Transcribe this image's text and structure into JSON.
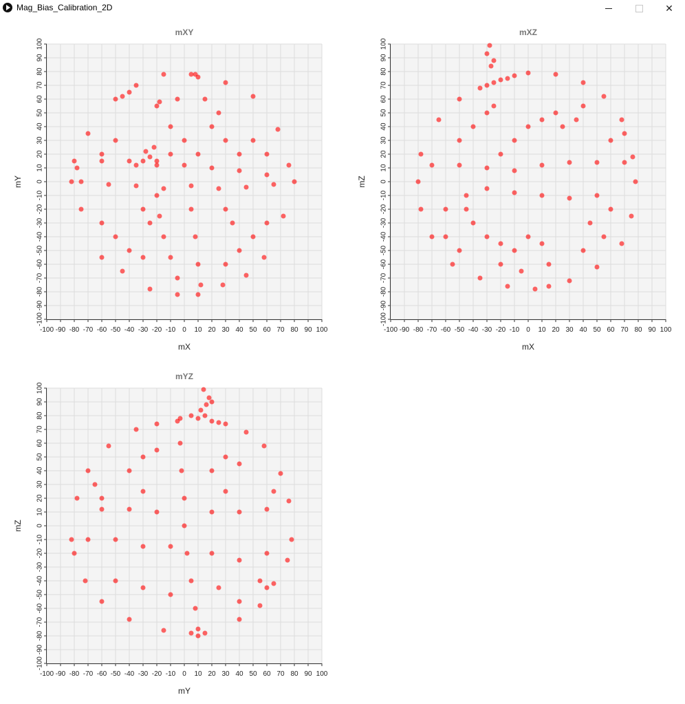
{
  "window": {
    "title": "Mag_Bias_Calibration_2D",
    "minimize_icon": "minimize-icon",
    "maximize_icon": "maximize-icon",
    "close_icon": "close-icon"
  },
  "colors": {
    "point": "#ff0000",
    "plot_bg": "#f4f4f4",
    "grid": "#dcdcdc",
    "title": "#777777"
  },
  "chart_data": [
    {
      "type": "scatter",
      "title": "mXY",
      "xlabel": "mX",
      "ylabel": "mY",
      "xlim": [
        -100,
        100
      ],
      "ylim": [
        -100,
        100
      ],
      "xticks": [
        "-100",
        "-90",
        "-80",
        "-70",
        "-60",
        "-50",
        "-40",
        "-30",
        "-20",
        "-10",
        "0",
        "10",
        "20",
        "30",
        "40",
        "50",
        "60",
        "70",
        "80",
        "90",
        "100"
      ],
      "yticks": [
        "100",
        "90",
        "80",
        "70",
        "60",
        "50",
        "40",
        "30",
        "20",
        "10",
        "0",
        "-10",
        "-20",
        "-30",
        "-40",
        "-50",
        "-60",
        "-70",
        "-80",
        "-90",
        "-100"
      ],
      "grid": true,
      "series": [
        {
          "points": [
            [
              -82,
              0
            ],
            [
              80,
              0
            ],
            [
              -78,
              10
            ],
            [
              76,
              12
            ],
            [
              -75,
              -20
            ],
            [
              72,
              -25
            ],
            [
              -70,
              35
            ],
            [
              68,
              38
            ],
            [
              -60,
              -55
            ],
            [
              58,
              -55
            ],
            [
              -50,
              60
            ],
            [
              50,
              62
            ],
            [
              -35,
              70
            ],
            [
              30,
              72
            ],
            [
              -15,
              78
            ],
            [
              8,
              78
            ],
            [
              -5,
              -82
            ],
            [
              10,
              -82
            ],
            [
              -25,
              -78
            ],
            [
              28,
              -75
            ],
            [
              -45,
              -65
            ],
            [
              45,
              -68
            ],
            [
              -30,
              15
            ],
            [
              -25,
              18
            ],
            [
              -20,
              12
            ],
            [
              -28,
              22
            ],
            [
              -22,
              25
            ],
            [
              -35,
              12
            ],
            [
              -40,
              65
            ],
            [
              -45,
              62
            ],
            [
              -20,
              55
            ],
            [
              -18,
              58
            ],
            [
              5,
              78
            ],
            [
              10,
              76
            ],
            [
              -80,
              15
            ],
            [
              -60,
              15
            ],
            [
              -40,
              15
            ],
            [
              -20,
              15
            ],
            [
              0,
              12
            ],
            [
              20,
              10
            ],
            [
              40,
              8
            ],
            [
              60,
              5
            ],
            [
              -75,
              0
            ],
            [
              -55,
              -2
            ],
            [
              -35,
              -3
            ],
            [
              -15,
              -5
            ],
            [
              5,
              -3
            ],
            [
              25,
              -5
            ],
            [
              45,
              -4
            ],
            [
              65,
              -2
            ],
            [
              -20,
              -10
            ],
            [
              -18,
              -25
            ],
            [
              -15,
              -40
            ],
            [
              -10,
              -55
            ],
            [
              -5,
              -70
            ],
            [
              5,
              -20
            ],
            [
              8,
              -40
            ],
            [
              10,
              -60
            ],
            [
              12,
              -75
            ],
            [
              -60,
              -30
            ],
            [
              -50,
              -40
            ],
            [
              -40,
              -50
            ],
            [
              -30,
              -55
            ],
            [
              30,
              -60
            ],
            [
              40,
              -50
            ],
            [
              50,
              -40
            ],
            [
              60,
              -30
            ],
            [
              -10,
              40
            ],
            [
              0,
              30
            ],
            [
              10,
              20
            ],
            [
              20,
              40
            ],
            [
              30,
              30
            ],
            [
              40,
              20
            ],
            [
              -50,
              30
            ],
            [
              -60,
              20
            ],
            [
              50,
              30
            ],
            [
              60,
              20
            ],
            [
              -30,
              -20
            ],
            [
              -25,
              -30
            ],
            [
              30,
              -20
            ],
            [
              35,
              -30
            ],
            [
              15,
              60
            ],
            [
              25,
              50
            ],
            [
              -5,
              60
            ],
            [
              -10,
              20
            ]
          ]
        }
      ]
    },
    {
      "type": "scatter",
      "title": "mXZ",
      "xlabel": "mX",
      "ylabel": "mZ",
      "xlim": [
        -100,
        100
      ],
      "ylim": [
        -100,
        100
      ],
      "xticks": [
        "-100",
        "-90",
        "-80",
        "-70",
        "-60",
        "-50",
        "-40",
        "-30",
        "-20",
        "-10",
        "0",
        "10",
        "20",
        "30",
        "40",
        "50",
        "60",
        "70",
        "80",
        "90",
        "100"
      ],
      "yticks": [
        "100",
        "90",
        "80",
        "70",
        "60",
        "50",
        "40",
        "30",
        "20",
        "10",
        "0",
        "-10",
        "-20",
        "-30",
        "-40",
        "-50",
        "-60",
        "-70",
        "-80",
        "-90",
        "-100"
      ],
      "grid": true,
      "series": [
        {
          "points": [
            [
              -28,
              99
            ],
            [
              -30,
              93
            ],
            [
              -25,
              88
            ],
            [
              -27,
              84
            ],
            [
              -25,
              72
            ],
            [
              -20,
              74
            ],
            [
              -30,
              70
            ],
            [
              -15,
              75
            ],
            [
              -35,
              68
            ],
            [
              -10,
              77
            ],
            [
              0,
              79
            ],
            [
              20,
              78
            ],
            [
              40,
              72
            ],
            [
              55,
              62
            ],
            [
              -50,
              60
            ],
            [
              -65,
              45
            ],
            [
              68,
              45
            ],
            [
              -78,
              20
            ],
            [
              76,
              18
            ],
            [
              -80,
              0
            ],
            [
              78,
              0
            ],
            [
              -78,
              -20
            ],
            [
              75,
              -25
            ],
            [
              -70,
              -40
            ],
            [
              68,
              -45
            ],
            [
              -55,
              -60
            ],
            [
              50,
              -62
            ],
            [
              -35,
              -70
            ],
            [
              30,
              -72
            ],
            [
              -15,
              -76
            ],
            [
              5,
              -78
            ],
            [
              15,
              -76
            ],
            [
              -70,
              12
            ],
            [
              -50,
              12
            ],
            [
              -30,
              10
            ],
            [
              -10,
              8
            ],
            [
              10,
              12
            ],
            [
              30,
              14
            ],
            [
              50,
              14
            ],
            [
              70,
              14
            ],
            [
              -60,
              -20
            ],
            [
              -45,
              -20
            ],
            [
              -30,
              -5
            ],
            [
              -10,
              -8
            ],
            [
              10,
              -10
            ],
            [
              30,
              -12
            ],
            [
              50,
              -10
            ],
            [
              -45,
              -10
            ],
            [
              -40,
              -30
            ],
            [
              -30,
              -40
            ],
            [
              -20,
              -45
            ],
            [
              -10,
              -50
            ],
            [
              0,
              -40
            ],
            [
              10,
              -45
            ],
            [
              15,
              -60
            ],
            [
              -20,
              20
            ],
            [
              -10,
              30
            ],
            [
              0,
              40
            ],
            [
              10,
              45
            ],
            [
              20,
              50
            ],
            [
              25,
              40
            ],
            [
              35,
              45
            ],
            [
              40,
              55
            ],
            [
              -40,
              40
            ],
            [
              -50,
              30
            ],
            [
              -30,
              50
            ],
            [
              -25,
              55
            ],
            [
              45,
              -30
            ],
            [
              55,
              -40
            ],
            [
              60,
              -20
            ],
            [
              40,
              -50
            ],
            [
              -60,
              -40
            ],
            [
              -50,
              -50
            ],
            [
              -20,
              -60
            ],
            [
              -5,
              -65
            ],
            [
              60,
              30
            ],
            [
              70,
              35
            ]
          ]
        }
      ]
    },
    {
      "type": "scatter",
      "title": "mYZ",
      "xlabel": "mY",
      "ylabel": "mZ",
      "xlim": [
        -100,
        100
      ],
      "ylim": [
        -100,
        100
      ],
      "xticks": [
        "-100",
        "-90",
        "-80",
        "-70",
        "-60",
        "-50",
        "-40",
        "-30",
        "-20",
        "-10",
        "0",
        "10",
        "20",
        "30",
        "40",
        "50",
        "60",
        "70",
        "80",
        "90",
        "100"
      ],
      "yticks": [
        "100",
        "90",
        "80",
        "70",
        "60",
        "50",
        "40",
        "30",
        "20",
        "10",
        "0",
        "-10",
        "-20",
        "-30",
        "-40",
        "-50",
        "-60",
        "-70",
        "-80",
        "-90",
        "-100"
      ],
      "grid": true,
      "series": [
        {
          "points": [
            [
              14,
              99
            ],
            [
              18,
              93
            ],
            [
              16,
              88
            ],
            [
              20,
              90
            ],
            [
              12,
              84
            ],
            [
              15,
              80
            ],
            [
              10,
              78
            ],
            [
              5,
              80
            ],
            [
              20,
              76
            ],
            [
              -5,
              76
            ],
            [
              -3,
              78
            ],
            [
              25,
              75
            ],
            [
              30,
              74
            ],
            [
              -20,
              74
            ],
            [
              -35,
              70
            ],
            [
              45,
              68
            ],
            [
              -55,
              58
            ],
            [
              58,
              58
            ],
            [
              -70,
              40
            ],
            [
              70,
              38
            ],
            [
              -78,
              20
            ],
            [
              76,
              18
            ],
            [
              -82,
              -10
            ],
            [
              78,
              -10
            ],
            [
              -80,
              -20
            ],
            [
              75,
              -25
            ],
            [
              -72,
              -40
            ],
            [
              65,
              -42
            ],
            [
              -60,
              -55
            ],
            [
              55,
              -58
            ],
            [
              -40,
              -68
            ],
            [
              40,
              -68
            ],
            [
              -15,
              -76
            ],
            [
              5,
              -78
            ],
            [
              10,
              -80
            ],
            [
              15,
              -78
            ],
            [
              -3,
              60
            ],
            [
              -2,
              40
            ],
            [
              0,
              20
            ],
            [
              0,
              0
            ],
            [
              2,
              -20
            ],
            [
              5,
              -40
            ],
            [
              8,
              -60
            ],
            [
              10,
              -75
            ],
            [
              -60,
              12
            ],
            [
              -40,
              12
            ],
            [
              -20,
              10
            ],
            [
              20,
              10
            ],
            [
              40,
              10
            ],
            [
              60,
              12
            ],
            [
              -70,
              -10
            ],
            [
              -50,
              -10
            ],
            [
              -30,
              -15
            ],
            [
              -10,
              -15
            ],
            [
              20,
              -20
            ],
            [
              40,
              -25
            ],
            [
              60,
              -20
            ],
            [
              -40,
              40
            ],
            [
              -30,
              50
            ],
            [
              -20,
              55
            ],
            [
              20,
              40
            ],
            [
              30,
              50
            ],
            [
              40,
              45
            ],
            [
              -50,
              -40
            ],
            [
              -30,
              -45
            ],
            [
              -10,
              -50
            ],
            [
              25,
              -45
            ],
            [
              40,
              -55
            ],
            [
              55,
              -40
            ],
            [
              60,
              -45
            ],
            [
              -60,
              20
            ],
            [
              -65,
              30
            ],
            [
              65,
              25
            ],
            [
              -30,
              25
            ],
            [
              30,
              25
            ]
          ]
        }
      ]
    }
  ]
}
